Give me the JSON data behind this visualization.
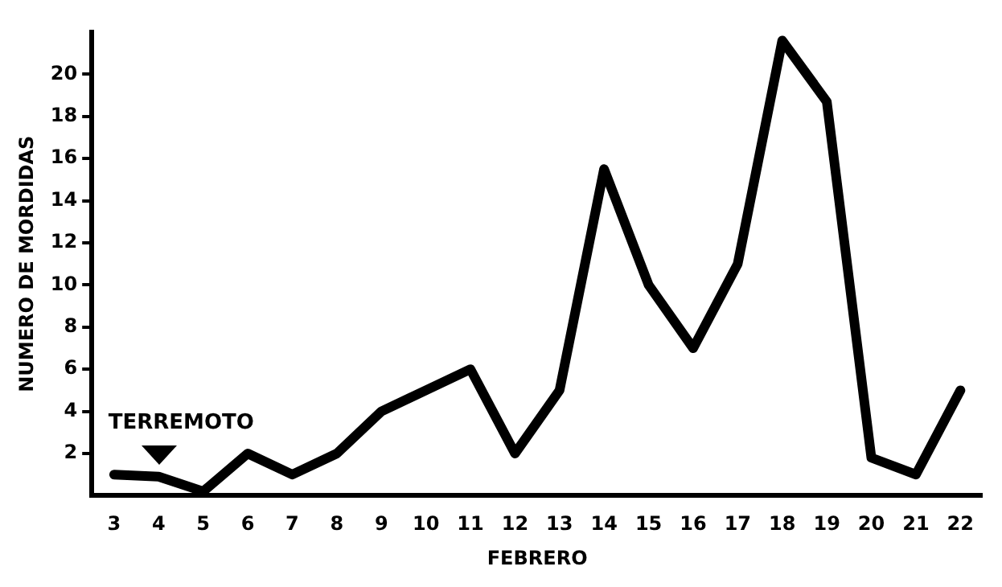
{
  "chart_data": {
    "type": "line",
    "xlabel": "FEBRERO",
    "ylabel": "NUMERO DE MORDIDAS",
    "categories": [
      "3",
      "4",
      "5",
      "6",
      "7",
      "8",
      "9",
      "10",
      "11",
      "12",
      "13",
      "14",
      "15",
      "16",
      "17",
      "18",
      "19",
      "20",
      "21",
      "22"
    ],
    "series": [
      {
        "color": "#000000",
        "values": [
          1,
          0.9,
          0.2,
          2,
          1,
          2,
          4,
          5,
          6,
          2,
          5,
          15.5,
          10,
          7,
          11,
          21.6,
          18.7,
          1.8,
          1,
          5
        ]
      }
    ],
    "ylim": [
      0,
      22
    ],
    "yticks": [
      2,
      4,
      6,
      8,
      10,
      12,
      14,
      16,
      18,
      20
    ],
    "annotations": [
      "TERREMOTO"
    ],
    "grid": false,
    "legend": false,
    "marker": "none",
    "line_style": "solid"
  }
}
